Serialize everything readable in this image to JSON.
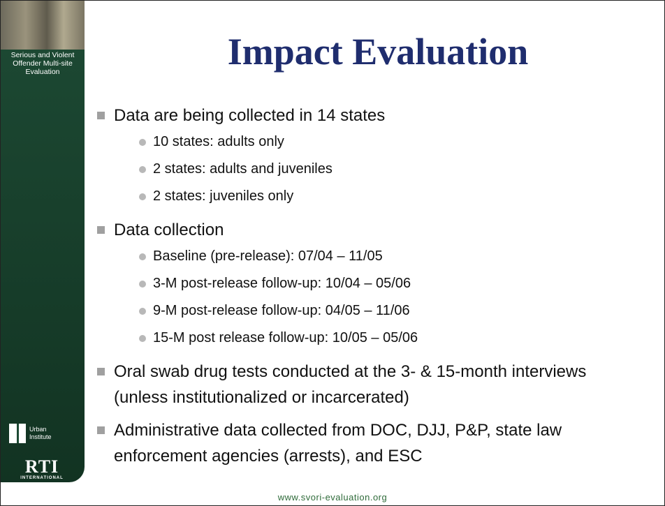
{
  "sidebar": {
    "caption": "Serious and Violent Offender Multi-site Evaluation",
    "urban": [
      "Urban",
      "Institute"
    ],
    "rti": {
      "name": "RTI",
      "subtitle": "INTERNATIONAL"
    }
  },
  "title": "Impact Evaluation",
  "bullets": [
    {
      "text": "Data are being collected in 14 states",
      "subitems": [
        "10 states: adults only",
        "2 states: adults and juveniles",
        "2 states: juveniles only"
      ]
    },
    {
      "text": "Data collection",
      "subitems": [
        "Baseline (pre-release): 07/04 – 11/05",
        "3-M post-release follow-up: 10/04 – 05/06",
        "9-M post-release follow-up: 04/05 – 11/06",
        "15-M post release follow-up: 10/05 – 05/06"
      ]
    },
    {
      "text": "Oral swab drug tests conducted at the 3- & 15-month interviews (unless institutionalized or incarcerated)",
      "subitems": []
    },
    {
      "text": "Administrative data collected from DOC, DJJ, P&P, state law enforcement agencies (arrests), and ESC",
      "subitems": []
    }
  ],
  "footer": "www.svori-evaluation.org"
}
